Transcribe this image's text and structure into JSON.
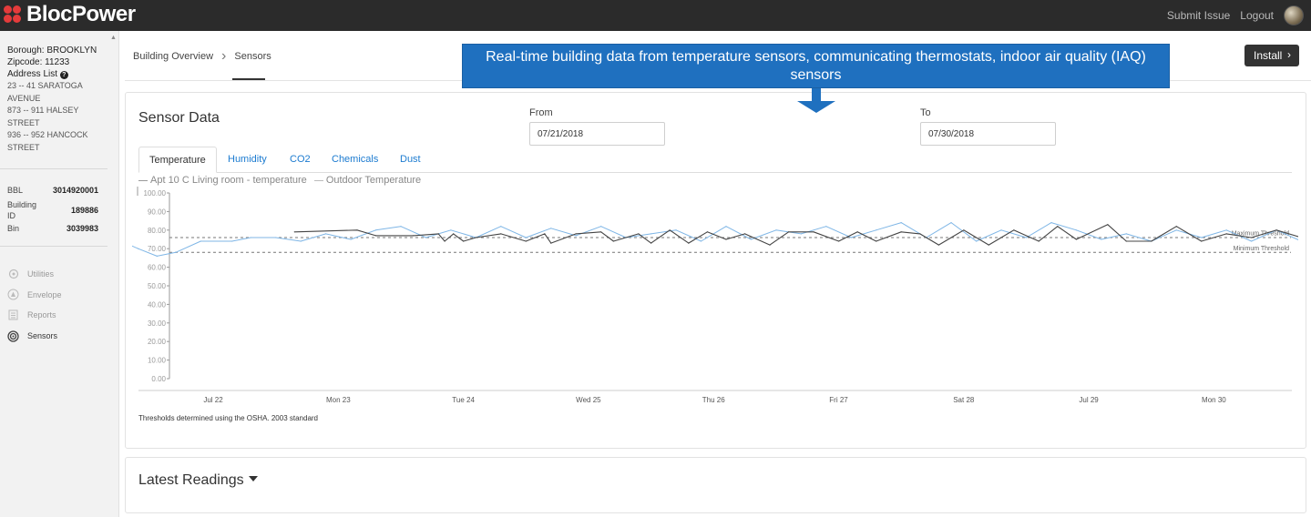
{
  "app": {
    "name": "BlocPower",
    "top_links": [
      "Submit Issue",
      "Logout"
    ]
  },
  "sidebar": {
    "borough": "Borough: BROOKLYN",
    "zipcode": "Zipcode: 11233",
    "address_list_label": "Address List",
    "addresses": [
      "23 -- 41 SARATOGA",
      "AVENUE",
      "873 -- 911 HALSEY",
      "STREET",
      "936 -- 952 HANCOCK",
      "STREET"
    ],
    "bbl_label": "BBL",
    "bbl_value": "3014920001",
    "building_id_label_1": "Building",
    "building_id_label_2": "ID",
    "building_id_value": "189886",
    "bin_label": "Bin",
    "bin_value": "3039983",
    "nav": [
      "Utilities",
      "Envelope",
      "Reports",
      "Sensors"
    ],
    "active_nav": "Sensors"
  },
  "breadcrumb": {
    "items": [
      "Building Overview",
      "Sensors"
    ]
  },
  "install_button": "Install",
  "callout": {
    "text": "Real-time building data from temperature sensors, communicating thermostats, indoor air quality (IAQ) sensors",
    "color": "#1f70bf"
  },
  "sensor_panel": {
    "title": "Sensor Data",
    "from_label": "From",
    "from_value": "07/21/2018",
    "to_label": "To",
    "to_value": "07/30/2018",
    "tabs": [
      "Temperature",
      "Humidity",
      "CO2",
      "Chemicals",
      "Dust"
    ],
    "active_tab": "Temperature",
    "footnote": "Thresholds determined using the OSHA. 2003 standard"
  },
  "latest_readings": {
    "title": "Latest Readings"
  },
  "chart_data": {
    "type": "line",
    "ylim": [
      0,
      100
    ],
    "y_ticks": [
      "0.00",
      "10.00",
      "20.00",
      "30.00",
      "40.00",
      "50.00",
      "60.00",
      "70.00",
      "80.00",
      "90.00",
      "100.00"
    ],
    "x_tick_labels": [
      "Jul 22",
      "Mon 23",
      "Tue 24",
      "Wed 25",
      "Thu 26",
      "Fri 27",
      "Sat 28",
      "Jul 29",
      "Mon 30"
    ],
    "thresholds": [
      {
        "name": "Maximum Threshold",
        "value": 76
      },
      {
        "name": "Minimum Threshold",
        "value": 68
      }
    ],
    "series": [
      {
        "name": "Apt 10 C Living room - temperature",
        "color": "#444444",
        "x_days": [
          1.35,
          1.85,
          2.0,
          2.3,
          2.5,
          2.55,
          2.62,
          2.7,
          2.8,
          3.0,
          3.2,
          3.35,
          3.4,
          3.6,
          3.8,
          3.9,
          4.1,
          4.2,
          4.35,
          4.5,
          4.65,
          4.8,
          4.95,
          5.15,
          5.3,
          5.5,
          5.7,
          5.85,
          6.0,
          6.2,
          6.35,
          6.5,
          6.7,
          6.9,
          7.1,
          7.3,
          7.45,
          7.6,
          7.85,
          8.0,
          8.2,
          8.4,
          8.6,
          8.8,
          9.0,
          9.2,
          9.4
        ],
        "values": [
          79,
          80,
          77,
          77,
          78,
          74,
          78,
          74,
          76,
          78,
          74,
          78,
          73,
          78,
          79,
          74,
          78,
          73,
          80,
          73,
          79,
          75,
          78,
          72,
          79,
          79,
          74,
          79,
          74,
          79,
          78,
          72,
          80,
          72,
          80,
          74,
          82,
          75,
          83,
          74,
          74,
          82,
          74,
          78,
          76,
          80,
          76
        ]
      },
      {
        "name": "Outdoor Temperature",
        "color": "#7fb6e6",
        "x_days": [
          0.0,
          0.1,
          0.25,
          0.4,
          0.6,
          0.85,
          1.0,
          1.2,
          1.4,
          1.6,
          1.8,
          2.0,
          2.2,
          2.4,
          2.6,
          2.8,
          3.0,
          3.2,
          3.4,
          3.6,
          3.8,
          4.0,
          4.2,
          4.4,
          4.6,
          4.8,
          5.0,
          5.2,
          5.4,
          5.6,
          5.8,
          6.0,
          6.2,
          6.4,
          6.6,
          6.8,
          7.0,
          7.2,
          7.4,
          7.6,
          7.8,
          8.0,
          8.2,
          8.4,
          8.6,
          8.8,
          9.0,
          9.2,
          9.4
        ],
        "values": [
          73,
          70,
          66,
          68,
          74,
          74,
          76,
          76,
          74,
          78,
          75,
          80,
          82,
          76,
          80,
          76,
          82,
          76,
          81,
          77,
          82,
          76,
          78,
          80,
          74,
          82,
          75,
          80,
          78,
          82,
          76,
          80,
          84,
          76,
          84,
          74,
          80,
          76,
          84,
          80,
          75,
          78,
          74,
          80,
          76,
          80,
          74,
          80,
          74
        ]
      }
    ]
  }
}
